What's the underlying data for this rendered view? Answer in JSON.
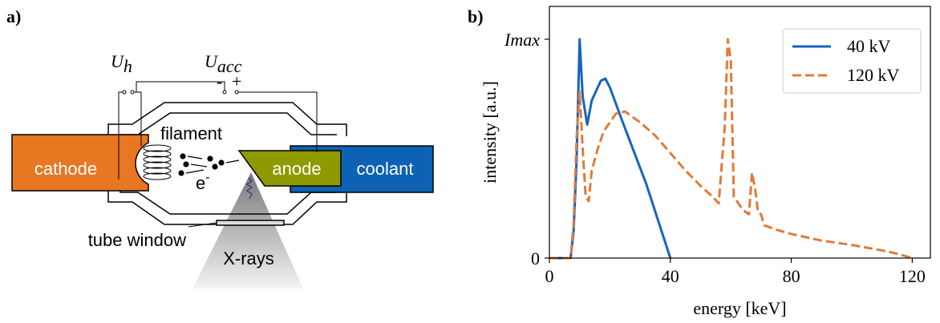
{
  "panel_a": {
    "label": "a)",
    "u_h": {
      "symbol": "U",
      "subscript": "h"
    },
    "u_acc": {
      "symbol": "U",
      "subscript": "acc"
    },
    "minus": "-",
    "plus": "+",
    "filament": "filament",
    "cathode": "cathode",
    "anode": "anode",
    "coolant": "coolant",
    "electron": {
      "symbol": "e",
      "superscript": "-"
    },
    "tube_window": "tube window",
    "xrays": "X-rays"
  },
  "chart_data": {
    "type": "line",
    "panel_label": "b)",
    "xlabel": "energy [keV]",
    "ylabel": "intensity [a.u.]",
    "xlim": [
      0,
      126
    ],
    "ylim": [
      0,
      1.15
    ],
    "xticks": [
      0,
      40,
      80,
      120
    ],
    "yticks": [
      0,
      {
        "value": 1,
        "label": "Imax"
      }
    ],
    "legend": "upper right",
    "series": [
      {
        "name": "40 kV",
        "color": "#1565c0",
        "linestyle": "solid",
        "x": [
          0,
          7,
          8,
          9,
          10,
          11,
          12.5,
          14,
          17,
          18.5,
          20,
          24,
          28,
          32,
          36,
          40
        ],
        "values": [
          0,
          0,
          0.12,
          0.45,
          1.0,
          0.74,
          0.61,
          0.72,
          0.81,
          0.82,
          0.78,
          0.63,
          0.485,
          0.34,
          0.17,
          0
        ]
      },
      {
        "name": "120 kV",
        "color": "#e07b39",
        "linestyle": "dashed",
        "x": [
          0,
          7,
          8,
          9,
          10,
          11,
          12,
          13,
          14,
          16,
          18,
          22,
          25,
          30,
          35,
          40,
          45,
          50,
          54,
          56,
          58,
          59,
          60,
          61,
          64,
          66,
          67,
          68,
          69,
          70,
          71,
          75,
          80,
          90,
          100,
          110,
          115,
          120
        ],
        "values": [
          0,
          0,
          0.15,
          0.55,
          0.76,
          0.5,
          0.28,
          0.26,
          0.4,
          0.5,
          0.58,
          0.66,
          0.67,
          0.62,
          0.56,
          0.48,
          0.4,
          0.33,
          0.28,
          0.25,
          0.6,
          1.0,
          0.9,
          0.28,
          0.22,
          0.2,
          0.39,
          0.32,
          0.21,
          0.2,
          0.15,
          0.13,
          0.11,
          0.08,
          0.06,
          0.035,
          0.02,
          0
        ]
      }
    ]
  }
}
